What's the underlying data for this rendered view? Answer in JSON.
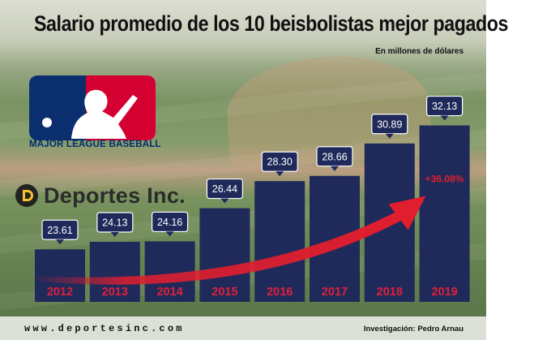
{
  "header": {
    "title": "Salario promedio de los 10 beisbolistas mejor pagados",
    "subtitle": "En millones de dólares"
  },
  "mlb": {
    "wordmark": "MAJOR LEAGUE BASEBALL"
  },
  "brand": {
    "name": "Deportes Inc."
  },
  "footer": {
    "website": "www.deportesinc.com",
    "credit": "Investigación: Pedro Arnau"
  },
  "colors": {
    "bar": "#1f2a5a",
    "year_label": "#e0203a",
    "value_box": "#1f2a5a",
    "arrow": "#e01e2e",
    "growth_label": "#e01e2e"
  },
  "chart_data": {
    "type": "bar",
    "categories": [
      "2012",
      "2013",
      "2014",
      "2015",
      "2016",
      "2017",
      "2018",
      "2019"
    ],
    "values": [
      23.61,
      24.13,
      24.16,
      26.44,
      28.3,
      28.66,
      30.89,
      32.13
    ],
    "value_labels": [
      "23.61",
      "24.13",
      "24.16",
      "26.44",
      "28.30",
      "28.66",
      "30.89",
      "32.13"
    ],
    "title": "Salario promedio de los 10 beisbolistas mejor pagados",
    "subtitle": "En millones de dólares",
    "growth_annotation": "+36.08%",
    "grid": false,
    "ylim": [
      20,
      33.5
    ]
  }
}
